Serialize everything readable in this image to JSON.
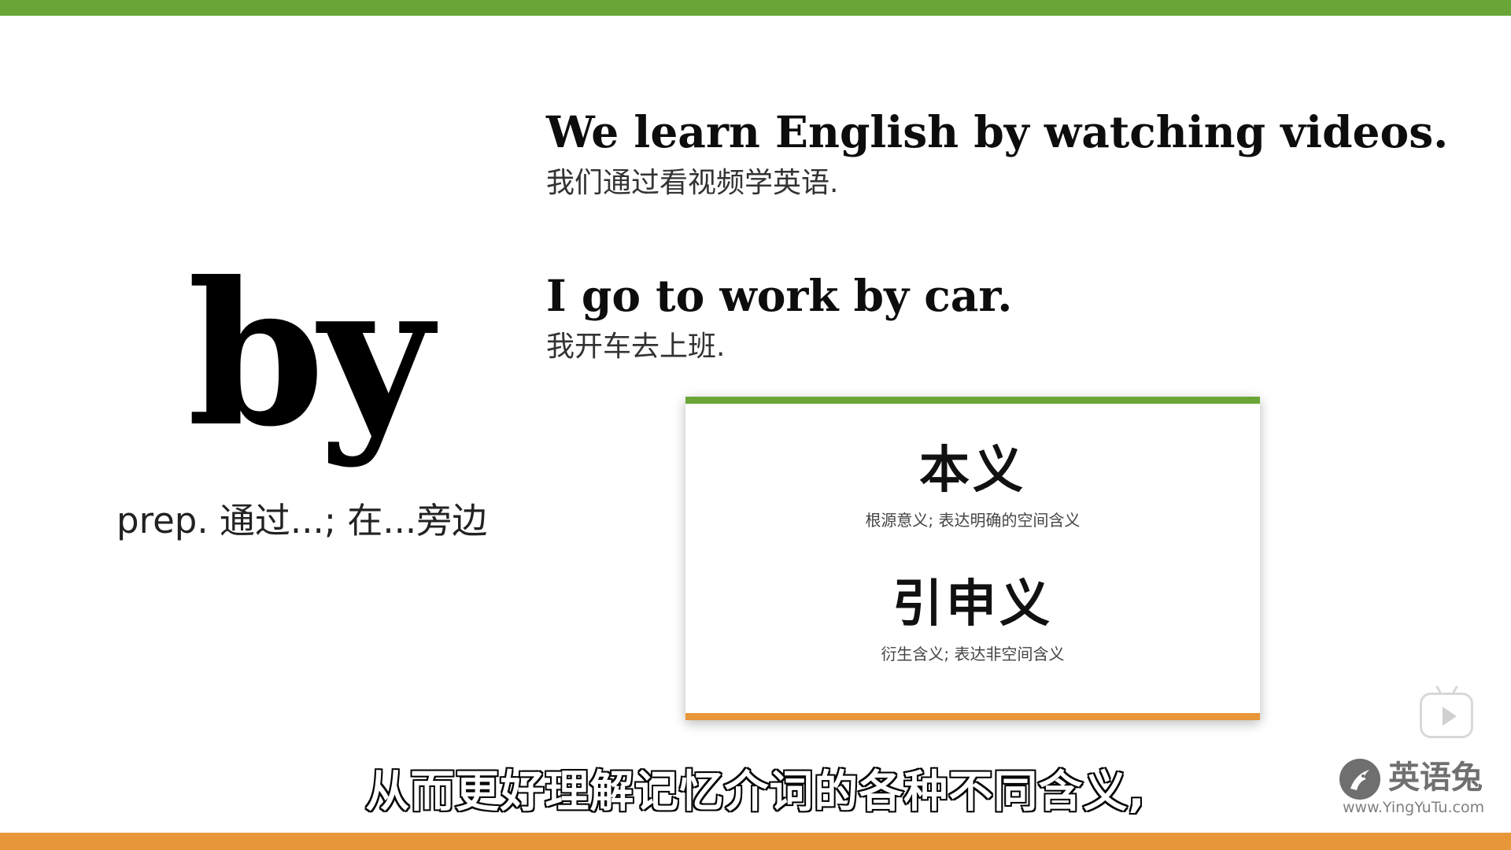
{
  "colors": {
    "top_bar": "#6aa637",
    "bottom_bar": "#e8963a",
    "card_top_border": "#6aa637",
    "card_bottom_border": "#e8963a"
  },
  "word": {
    "text": "by",
    "definition": "prep. 通过...; 在...旁边"
  },
  "examples": [
    {
      "en": "We learn English by watching videos.",
      "zh": "我们通过看视频学英语."
    },
    {
      "en": "I go to work by car.",
      "zh": "我开车去上班."
    }
  ],
  "card": {
    "sections": [
      {
        "heading": "本义",
        "sub": "根源意义; 表达明确的空间含义"
      },
      {
        "heading": "引申义",
        "sub": "衍生含义; 表达非空间含义"
      }
    ]
  },
  "subtitle": "从而更好理解记忆介词的各种不同含义,",
  "watermark": {
    "icon": "play-icon",
    "logo_icon": "rabbit-logo-icon",
    "name": "英语兔",
    "url": "www.YingYuTu.com"
  }
}
